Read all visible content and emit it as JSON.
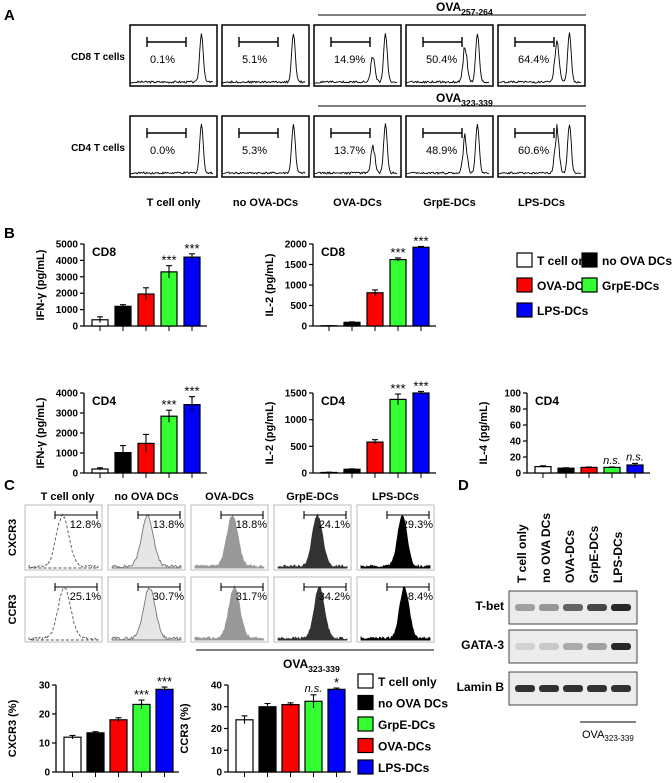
{
  "chart_data": {
    "type": "figure",
    "panel_labels": [
      "A",
      "B",
      "C",
      "D"
    ],
    "panel_a": {
      "group_labels": [
        "T cell only",
        "no OVA-DCs",
        "OVA-DCs",
        "GrpE-DCs",
        "LPS-DCs"
      ],
      "rows": [
        {
          "label": "CD8 T cells",
          "header_base": "OVA",
          "header_sub": "257-264",
          "percentages": [
            "0.1%",
            "5.1%",
            "14.9%",
            "50.4%",
            "64.4%"
          ]
        },
        {
          "label": "CD4 T cells",
          "header_base": "OVA",
          "header_sub": "323-339",
          "percentages": [
            "0.0%",
            "5.3%",
            "13.7%",
            "48.9%",
            "60.6%"
          ]
        }
      ]
    },
    "panel_b": {
      "legend": [
        {
          "label": "T cell only",
          "color": "#ffffff"
        },
        {
          "label": "no OVA DCs",
          "color": "#000000"
        },
        {
          "label": "OVA-DCs",
          "color": "#ff0000"
        },
        {
          "label": "GrpE-DCs",
          "color": "#33ff33"
        },
        {
          "label": "LPS-DCs",
          "color": "#0000ff"
        }
      ],
      "charts": [
        {
          "type": "bar",
          "panel_title": "CD8",
          "ylabel": "IFN-γ (pg/mL)",
          "ylim": [
            0,
            5000
          ],
          "ticks": [
            0,
            1000,
            2000,
            3000,
            4000,
            5000
          ],
          "values": [
            380,
            1200,
            1950,
            3300,
            4200
          ],
          "errors": [
            180,
            100,
            380,
            380,
            200
          ],
          "annotations": [
            "",
            "",
            "",
            "***",
            "***"
          ]
        },
        {
          "type": "bar",
          "panel_title": "CD8",
          "ylabel": "IL-2 (pg/mL)",
          "ylim": [
            0,
            2000
          ],
          "ticks": [
            0,
            500,
            1000,
            1500,
            2000
          ],
          "values": [
            5,
            90,
            810,
            1620,
            1920
          ],
          "errors": [
            3,
            10,
            70,
            40,
            20
          ],
          "annotations": [
            "",
            "",
            "",
            "***",
            "***"
          ]
        },
        {
          "type": "bar",
          "panel_title": "CD4",
          "ylabel": "IFN-γ (pg/mL)",
          "ylim": [
            0,
            4000
          ],
          "ticks": [
            0,
            1000,
            2000,
            3000,
            4000
          ],
          "values": [
            200,
            1020,
            1480,
            2840,
            3420
          ],
          "errors": [
            60,
            350,
            450,
            300,
            400
          ],
          "annotations": [
            "",
            "",
            "",
            "***",
            "***"
          ]
        },
        {
          "type": "bar",
          "panel_title": "CD4",
          "ylabel": "IL-2 (pg/mL)",
          "ylim": [
            0,
            1500
          ],
          "ticks": [
            0,
            500,
            1000,
            1500
          ],
          "values": [
            10,
            70,
            580,
            1380,
            1500
          ],
          "errors": [
            5,
            8,
            45,
            100,
            30
          ],
          "annotations": [
            "",
            "",
            "",
            "***",
            "***"
          ]
        },
        {
          "type": "bar",
          "panel_title": "CD4",
          "ylabel": "IL-4 (pg/mL)",
          "ylim": [
            0,
            100
          ],
          "ticks": [
            0,
            20,
            40,
            60,
            80,
            100
          ],
          "values": [
            8,
            6,
            7,
            7,
            10
          ],
          "errors": [
            1,
            0.5,
            0.5,
            0.5,
            2
          ],
          "annotations": [
            "",
            "",
            "",
            "n.s.",
            "n.s."
          ]
        }
      ]
    },
    "panel_c": {
      "column_labels": [
        "T cell only",
        "no OVA DCs",
        "OVA-DCs",
        "GrpE-DCs",
        "LPS-DCs"
      ],
      "rows": [
        {
          "label": "CXCR3",
          "percentages": [
            "12.8%",
            "13.8%",
            "18.8%",
            "24.1%",
            "29.3%"
          ]
        },
        {
          "label": "CCR3",
          "percentages": [
            "25.1%",
            "30.7%",
            "31.7%",
            "34.2%",
            "38.4%"
          ]
        }
      ],
      "header_base": "OVA",
      "header_sub": "323-339",
      "legend": [
        {
          "label": "T cell only",
          "color": "#ffffff"
        },
        {
          "label": "no OVA DCs",
          "color": "#000000"
        },
        {
          "label": "GrpE-DCs",
          "color": "#33ff33"
        },
        {
          "label": "OVA-DCs",
          "color": "#ff0000"
        },
        {
          "label": "LPS-DCs",
          "color": "#0000ff"
        }
      ],
      "charts": [
        {
          "type": "bar",
          "ylabel": "CXCR3 (%)",
          "ylim": [
            0,
            30
          ],
          "ticks": [
            0,
            10,
            20,
            30
          ],
          "values": [
            12,
            13.5,
            18,
            23.3,
            28.5
          ],
          "errors": [
            0.6,
            0.4,
            0.7,
            1.5,
            0.8
          ],
          "annotations": [
            "",
            "",
            "",
            "***",
            "***"
          ]
        },
        {
          "type": "bar",
          "ylabel": "CCR3 (%)",
          "ylim": [
            0,
            40
          ],
          "ticks": [
            0,
            10,
            20,
            30,
            40
          ],
          "values": [
            24,
            30,
            31,
            32.5,
            38
          ],
          "errors": [
            1.8,
            1.5,
            0.8,
            3,
            0.6
          ],
          "annotations": [
            "",
            "",
            "",
            "n.s.",
            "*"
          ]
        }
      ]
    },
    "panel_d": {
      "lane_labels": [
        "T cell only",
        "no OVA DCs",
        "OVA-DCs",
        "GrpE-DCs",
        "LPS-DCs"
      ],
      "blots": [
        {
          "label": "T-bet",
          "intensities": [
            0.35,
            0.4,
            0.65,
            0.8,
            0.95
          ]
        },
        {
          "label": "GATA-3",
          "intensities": [
            0.1,
            0.15,
            0.3,
            0.35,
            0.95
          ]
        },
        {
          "label": "Lamin B",
          "intensities": [
            0.9,
            0.9,
            0.9,
            0.9,
            0.9
          ]
        }
      ],
      "footer_base": "OVA",
      "footer_sub": "323-339"
    }
  }
}
